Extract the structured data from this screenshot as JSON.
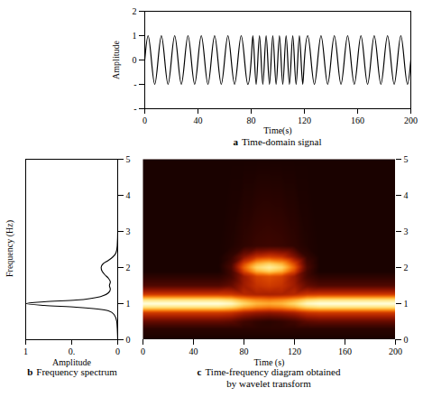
{
  "chart_data": [
    {
      "type": "line",
      "caption_letter": "a",
      "caption": "Time-domain signal",
      "x_label": "Time(s)",
      "y_label": "Amplitude",
      "color": "#000000",
      "x": [
        0,
        2.5,
        5,
        7.5,
        10,
        12.5,
        15,
        17.5,
        20,
        22.5,
        25,
        27.5,
        30,
        32.5,
        35,
        37.5,
        40,
        42.5,
        45,
        47.5,
        50,
        52.5,
        55,
        57.5,
        60,
        62.5,
        65,
        67.5,
        70,
        72.5,
        75,
        77.5,
        80,
        81.25,
        82.5,
        83.75,
        85,
        86.25,
        87.5,
        88.75,
        90,
        91.25,
        92.5,
        93.75,
        95,
        96.25,
        97.5,
        98.75,
        100,
        101.25,
        102.5,
        103.75,
        105,
        106.25,
        107.5,
        108.75,
        110,
        111.25,
        112.5,
        113.75,
        115,
        116.25,
        117.5,
        118.75,
        120,
        122.5,
        125,
        127.5,
        130,
        132.5,
        135,
        137.5,
        140,
        142.5,
        145,
        147.5,
        150,
        152.5,
        155,
        157.5,
        160,
        162.5,
        165,
        167.5,
        170,
        172.5,
        175,
        177.5,
        180,
        182.5,
        185,
        187.5,
        190,
        192.5,
        195,
        197.5,
        200
      ],
      "values": [
        0,
        1,
        0,
        -1,
        0,
        1,
        0,
        -1,
        0,
        1,
        0,
        -1,
        0,
        1,
        0,
        -1,
        0,
        1,
        0,
        -1,
        0,
        1,
        0,
        -1,
        0,
        1,
        0,
        -1,
        0,
        1,
        0,
        -1,
        0,
        1,
        0,
        -1,
        0,
        1,
        0,
        -1,
        0,
        1,
        0,
        -1,
        0,
        1,
        0,
        -1,
        0,
        1,
        0,
        -1,
        0,
        1,
        0,
        -1,
        0,
        1,
        0,
        -1,
        0,
        1,
        0,
        -1,
        0,
        1,
        0,
        -1,
        0,
        1,
        0,
        -1,
        0,
        1,
        0,
        -1,
        0,
        1,
        0,
        -1,
        0,
        1,
        0,
        -1,
        0,
        1,
        0,
        -1,
        0,
        1,
        0,
        -1,
        0,
        1,
        0,
        -1,
        0
      ],
      "xlim": [
        0,
        200
      ],
      "xticks": [
        0,
        40,
        80,
        120,
        160,
        200
      ],
      "ylim": [
        -2,
        2
      ],
      "yticks": [
        2,
        1,
        0,
        {
          "value": -1,
          "label": "-"
        },
        {
          "value": -2,
          "label": "-"
        }
      ]
    },
    {
      "type": "line",
      "orientation": "horizontal",
      "caption_letter": "b",
      "caption": "Frequency spectrum",
      "x_label": "Amplitude",
      "y_label": "Frequency (Hz)",
      "color": "#000000",
      "y": [
        0,
        0.5,
        0.7,
        0.8,
        0.9,
        0.95,
        1.0,
        1.05,
        1.1,
        1.2,
        1.3,
        1.4,
        1.5,
        1.6,
        1.7,
        1.8,
        1.9,
        2.0,
        2.1,
        2.2,
        2.3,
        2.4,
        2.6,
        3,
        5
      ],
      "values": [
        0,
        0.01,
        0.04,
        0.1,
        0.45,
        0.8,
        1.0,
        0.8,
        0.45,
        0.18,
        0.1,
        0.08,
        0.09,
        0.08,
        0.1,
        0.14,
        0.17,
        0.18,
        0.16,
        0.1,
        0.05,
        0.02,
        0.005,
        0,
        0
      ],
      "xlim": [
        1,
        0
      ],
      "xticks": [
        1,
        {
          "value": 0.5,
          "label": "0."
        },
        0
      ],
      "ylim": [
        0,
        5
      ],
      "yticks": [
        0,
        1,
        2,
        3,
        4,
        5
      ]
    },
    {
      "type": "heatmap",
      "caption_letter": "c",
      "caption": "Time-frequency diagram obtained by wavelet transform",
      "x_label": "Time (s)",
      "x": [
        0,
        10,
        20,
        30,
        40,
        50,
        60,
        70,
        80,
        90,
        100,
        110,
        120,
        130,
        140,
        150,
        160,
        170,
        180,
        190,
        200
      ],
      "y": [
        0,
        0.3,
        0.5,
        0.75,
        0.9,
        1,
        1.1,
        1.25,
        1.5,
        1.75,
        1.9,
        2,
        2.1,
        2.3,
        2.6,
        5
      ],
      "values": [
        [
          0,
          0,
          0,
          0,
          0,
          0,
          0,
          0,
          0,
          0,
          0,
          0,
          0,
          0,
          0,
          0,
          0,
          0,
          0,
          0,
          0
        ],
        [
          0.05,
          0.05,
          0.05,
          0.05,
          0.05,
          0.05,
          0.05,
          0.05,
          0.05,
          0.05,
          0.05,
          0.05,
          0.05,
          0.05,
          0.05,
          0.05,
          0.05,
          0.05,
          0.05,
          0.05,
          0.05
        ],
        [
          0.2,
          0.2,
          0.2,
          0.2,
          0.2,
          0.2,
          0.2,
          0.18,
          0.11,
          0.07,
          0.05,
          0.07,
          0.11,
          0.18,
          0.2,
          0.2,
          0.2,
          0.2,
          0.2,
          0.2,
          0.2
        ],
        [
          0.45,
          0.45,
          0.45,
          0.45,
          0.45,
          0.45,
          0.45,
          0.43,
          0.36,
          0.32,
          0.3,
          0.32,
          0.36,
          0.43,
          0.45,
          0.45,
          0.45,
          0.45,
          0.45,
          0.45,
          0.45
        ],
        [
          0.85,
          0.85,
          0.85,
          0.85,
          0.85,
          0.85,
          0.85,
          0.81,
          0.7,
          0.63,
          0.6,
          0.63,
          0.7,
          0.81,
          0.85,
          0.85,
          0.85,
          0.85,
          0.85,
          0.85,
          0.85
        ],
        [
          1,
          1,
          1,
          1,
          1,
          1,
          1,
          0.96,
          0.82,
          0.73,
          0.7,
          0.73,
          0.82,
          0.96,
          1,
          1,
          1,
          1,
          1,
          1,
          1
        ],
        [
          0.85,
          0.85,
          0.85,
          0.85,
          0.85,
          0.85,
          0.85,
          0.81,
          0.7,
          0.63,
          0.6,
          0.63,
          0.7,
          0.81,
          0.85,
          0.85,
          0.85,
          0.85,
          0.85,
          0.85,
          0.85
        ],
        [
          0.45,
          0.45,
          0.45,
          0.45,
          0.45,
          0.45,
          0.45,
          0.44,
          0.39,
          0.36,
          0.35,
          0.36,
          0.39,
          0.44,
          0.45,
          0.45,
          0.45,
          0.45,
          0.45,
          0.45,
          0.45
        ],
        [
          0.15,
          0.15,
          0.15,
          0.15,
          0.15,
          0.15,
          0.15,
          0.2,
          0.33,
          0.42,
          0.45,
          0.42,
          0.33,
          0.2,
          0.15,
          0.15,
          0.15,
          0.15,
          0.15,
          0.15,
          0.15
        ],
        [
          0.05,
          0.05,
          0.05,
          0.05,
          0.05,
          0.05,
          0.05,
          0.12,
          0.32,
          0.46,
          0.5,
          0.46,
          0.32,
          0.12,
          0.05,
          0.05,
          0.05,
          0.05,
          0.05,
          0.05,
          0.05
        ],
        [
          0,
          0,
          0,
          0,
          0,
          0,
          0,
          0.12,
          0.48,
          0.72,
          0.8,
          0.72,
          0.48,
          0.12,
          0,
          0,
          0,
          0,
          0,
          0,
          0
        ],
        [
          0,
          0,
          0,
          0,
          0,
          0,
          0,
          0.14,
          0.54,
          0.81,
          0.9,
          0.81,
          0.54,
          0.14,
          0,
          0,
          0,
          0,
          0,
          0,
          0
        ],
        [
          0,
          0,
          0,
          0,
          0,
          0,
          0,
          0.12,
          0.48,
          0.72,
          0.8,
          0.72,
          0.48,
          0.12,
          0,
          0,
          0,
          0,
          0,
          0,
          0
        ],
        [
          0,
          0,
          0,
          0,
          0,
          0,
          0,
          0.07,
          0.27,
          0.41,
          0.45,
          0.41,
          0.27,
          0.07,
          0,
          0,
          0,
          0,
          0,
          0,
          0
        ],
        [
          0,
          0,
          0,
          0,
          0,
          0,
          0,
          0.02,
          0.06,
          0.09,
          0.1,
          0.09,
          0.06,
          0.02,
          0,
          0,
          0,
          0,
          0,
          0,
          0
        ],
        [
          0,
          0,
          0,
          0,
          0,
          0,
          0,
          0,
          0,
          0,
          0,
          0,
          0,
          0,
          0,
          0,
          0,
          0,
          0,
          0,
          0
        ]
      ],
      "zlim": [
        0,
        1
      ],
      "xlim": [
        0,
        200
      ],
      "xticks": [
        0,
        40,
        80,
        120,
        160,
        200
      ],
      "ylim": [
        0,
        5
      ],
      "yticks": [
        0,
        1,
        2,
        3,
        4,
        5
      ]
    }
  ]
}
